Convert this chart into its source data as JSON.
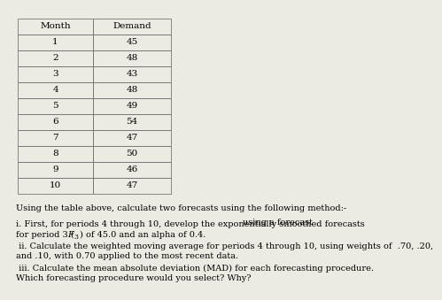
{
  "months": [
    1,
    2,
    3,
    4,
    5,
    6,
    7,
    8,
    9,
    10
  ],
  "demands": [
    45,
    48,
    43,
    48,
    49,
    54,
    47,
    50,
    46,
    47
  ],
  "col_headers": [
    "Month",
    "Demand"
  ],
  "bg_color": "#ede9e3",
  "table_line_color": "#777777",
  "font_size_table": 7.5,
  "font_size_text": 7.0,
  "text_intro": "Using the table above, calculate two forecasts using the following method:-",
  "text_i_main": "i. First, for periods 4 through 10, develop the exponentially smoothed forecasts",
  "text_i_right": "using a forecast",
  "text_i_line2a": "for period 3 (",
  "text_i_line2b": "F",
  "text_i_sub": "3",
  "text_i_line2c": ") of 45.0 and an alpha of 0.4.",
  "text_ii_1": " ii. Calculate the weighted moving average for periods 4 through 10, using weights of  .70, .20,",
  "text_ii_2": "and .10, with 0.70 applied to the most recent data.",
  "text_iii_1": " iii. Calculate the mean absolute deviation (MAD) for each forecasting procedure.",
  "text_iii_2": "Which forecasting procedure would you select? Why?"
}
